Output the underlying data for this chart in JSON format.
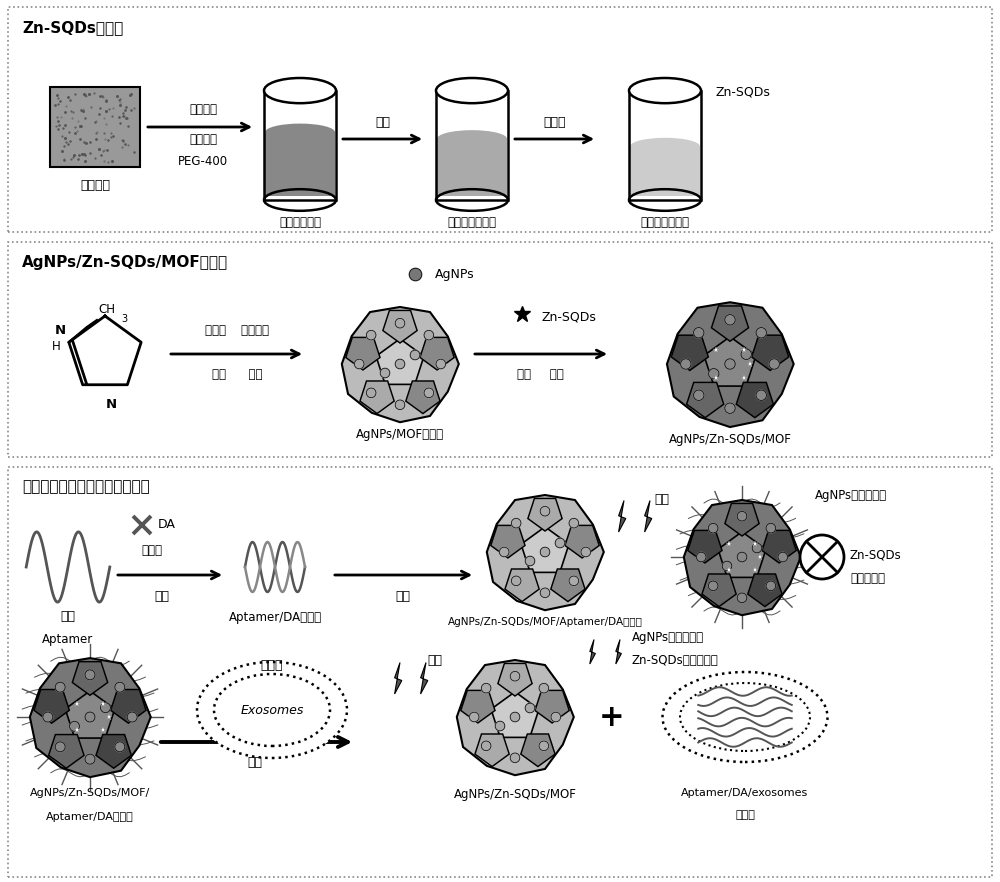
{
  "bg_color": "#ffffff",
  "section1_title": "Zn-SQDs的制备",
  "section2_title": "AgNPs/Zn-SQDs/MOF的制备",
  "section3_title": "比率荧光外泌体适体探针的制备",
  "gray_dark": "#444444",
  "gray_med": "#777777",
  "gray_light": "#aaaaaa",
  "gray_lighter": "#cccccc",
  "beaker1_liquid": "#888888",
  "beaker2_liquid": "#aaaaaa",
  "beaker3_liquid": "#cccccc",
  "mof_outer": "#888888",
  "mof_face_dark": "#555555",
  "mof_face_mid": "#777777",
  "mof_face_light": "#aaaaaa",
  "mof_dot": "#aaaaaa",
  "mof2_outer": "#666666",
  "mof2_face_dark": "#333333",
  "mof2_face_mid": "#555555",
  "mof2_face_light": "#888888",
  "mof2_dot": "#999999"
}
